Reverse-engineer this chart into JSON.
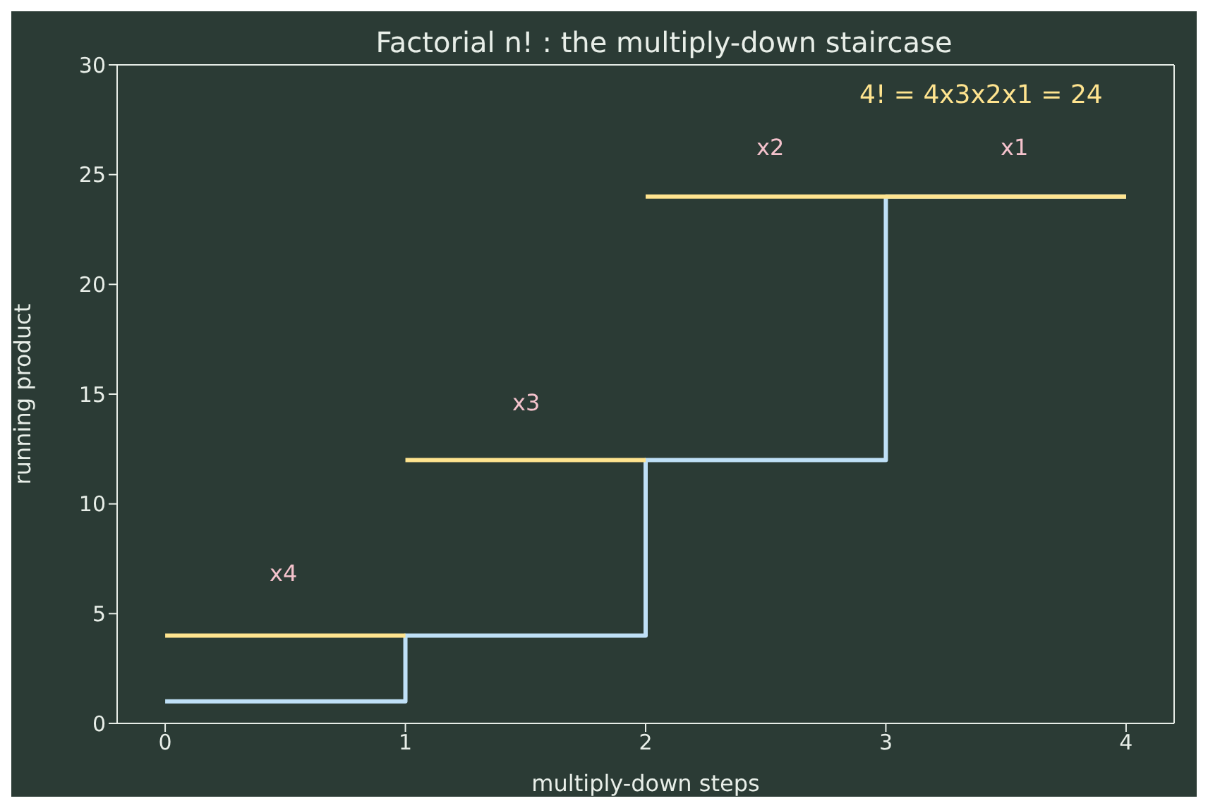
{
  "chart_data": {
    "type": "step",
    "title": "Factorial n! : the multiply-down staircase",
    "xlabel": "multiply-down steps",
    "ylabel": "running product",
    "series": [
      {
        "color": "#bfe0f7",
        "x": [
          0,
          1,
          2,
          3,
          4
        ],
        "values": [
          1,
          4,
          12,
          24,
          24
        ]
      },
      {
        "color": "#ffe48f",
        "x": [
          0,
          1
        ],
        "values": [
          4,
          4
        ]
      },
      {
        "color": "#ffe48f",
        "x": [
          1,
          2
        ],
        "values": [
          12,
          12
        ]
      },
      {
        "color": "#ffe48f",
        "x": [
          2,
          4
        ],
        "values": [
          24,
          24
        ]
      }
    ],
    "xlim": [
      -0.2,
      4.2
    ],
    "xticks": [
      0,
      1,
      2,
      3,
      4
    ],
    "ylim": [
      0,
      30
    ],
    "yticks": [
      0,
      5,
      10,
      15,
      20,
      25,
      30
    ],
    "legend": false,
    "marker": "none",
    "line_style": "solid",
    "annotations": [
      "x4",
      "x3",
      "x2",
      "x1",
      "4! = 4x3x2x1 = 24"
    ]
  }
}
